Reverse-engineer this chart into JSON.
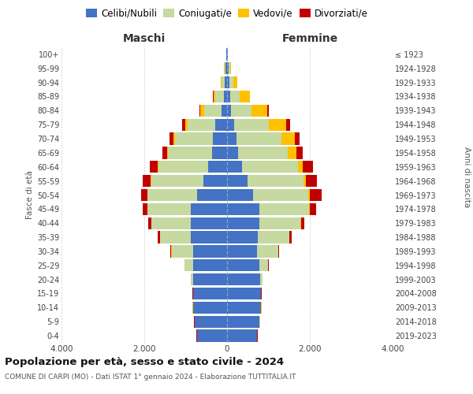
{
  "age_groups_bottom_to_top": [
    "0-4",
    "5-9",
    "10-14",
    "15-19",
    "20-24",
    "25-29",
    "30-34",
    "35-39",
    "40-44",
    "45-49",
    "50-54",
    "55-59",
    "60-64",
    "65-69",
    "70-74",
    "75-79",
    "80-84",
    "85-89",
    "90-94",
    "95-99",
    "100+"
  ],
  "birth_years_bottom_to_top": [
    "2019-2023",
    "2014-2018",
    "2009-2013",
    "2004-2008",
    "1999-2003",
    "1994-1998",
    "1989-1993",
    "1984-1988",
    "1979-1983",
    "1974-1978",
    "1969-1973",
    "1964-1968",
    "1959-1963",
    "1954-1958",
    "1949-1953",
    "1944-1948",
    "1939-1943",
    "1934-1938",
    "1929-1933",
    "1924-1928",
    "≤ 1923"
  ],
  "maschi": {
    "celibi": [
      720,
      780,
      820,
      810,
      820,
      820,
      820,
      870,
      870,
      870,
      720,
      580,
      450,
      370,
      350,
      280,
      130,
      80,
      50,
      30,
      10
    ],
    "coniugati": [
      5,
      5,
      5,
      10,
      50,
      200,
      520,
      750,
      950,
      1050,
      1200,
      1250,
      1200,
      1050,
      900,
      680,
      430,
      200,
      80,
      30,
      5
    ],
    "vedovi": [
      5,
      5,
      5,
      5,
      5,
      5,
      5,
      5,
      5,
      5,
      10,
      15,
      20,
      30,
      40,
      50,
      80,
      50,
      20,
      10,
      2
    ],
    "divorziati": [
      5,
      5,
      5,
      5,
      5,
      10,
      20,
      50,
      80,
      120,
      150,
      200,
      200,
      120,
      100,
      80,
      30,
      10,
      5,
      0,
      0
    ]
  },
  "femmine": {
    "nubili": [
      720,
      790,
      820,
      810,
      800,
      780,
      730,
      750,
      780,
      780,
      620,
      490,
      370,
      270,
      230,
      180,
      90,
      70,
      50,
      30,
      10
    ],
    "coniugate": [
      5,
      5,
      5,
      10,
      50,
      210,
      500,
      750,
      1000,
      1200,
      1350,
      1350,
      1350,
      1200,
      1080,
      820,
      500,
      230,
      100,
      40,
      5
    ],
    "vedove": [
      5,
      5,
      5,
      5,
      5,
      5,
      5,
      5,
      10,
      20,
      30,
      60,
      100,
      200,
      330,
      430,
      380,
      250,
      100,
      30,
      5
    ],
    "divorziate": [
      5,
      5,
      5,
      5,
      5,
      10,
      20,
      50,
      80,
      150,
      280,
      280,
      250,
      150,
      120,
      100,
      30,
      10,
      5,
      0,
      0
    ]
  },
  "colors": {
    "celibi": "#4472c4",
    "coniugati": "#c5d9a0",
    "vedovi": "#ffc000",
    "divorziati": "#c00000"
  },
  "legend_labels": [
    "Celibi/Nubili",
    "Coniugati/e",
    "Vedovi/e",
    "Divorziati/e"
  ],
  "title_main": "Popolazione per età, sesso e stato civile - 2024",
  "title_sub": "COMUNE DI CARPI (MO) - Dati ISTAT 1° gennaio 2024 - Elaborazione TUTTITALIA.IT",
  "xlabel_left": "Maschi",
  "xlabel_right": "Femmine",
  "ylabel_left": "Fasce di età",
  "ylabel_right": "Anni di nascita",
  "xlim": 4000,
  "background_color": "#ffffff",
  "grid_color": "#cccccc"
}
